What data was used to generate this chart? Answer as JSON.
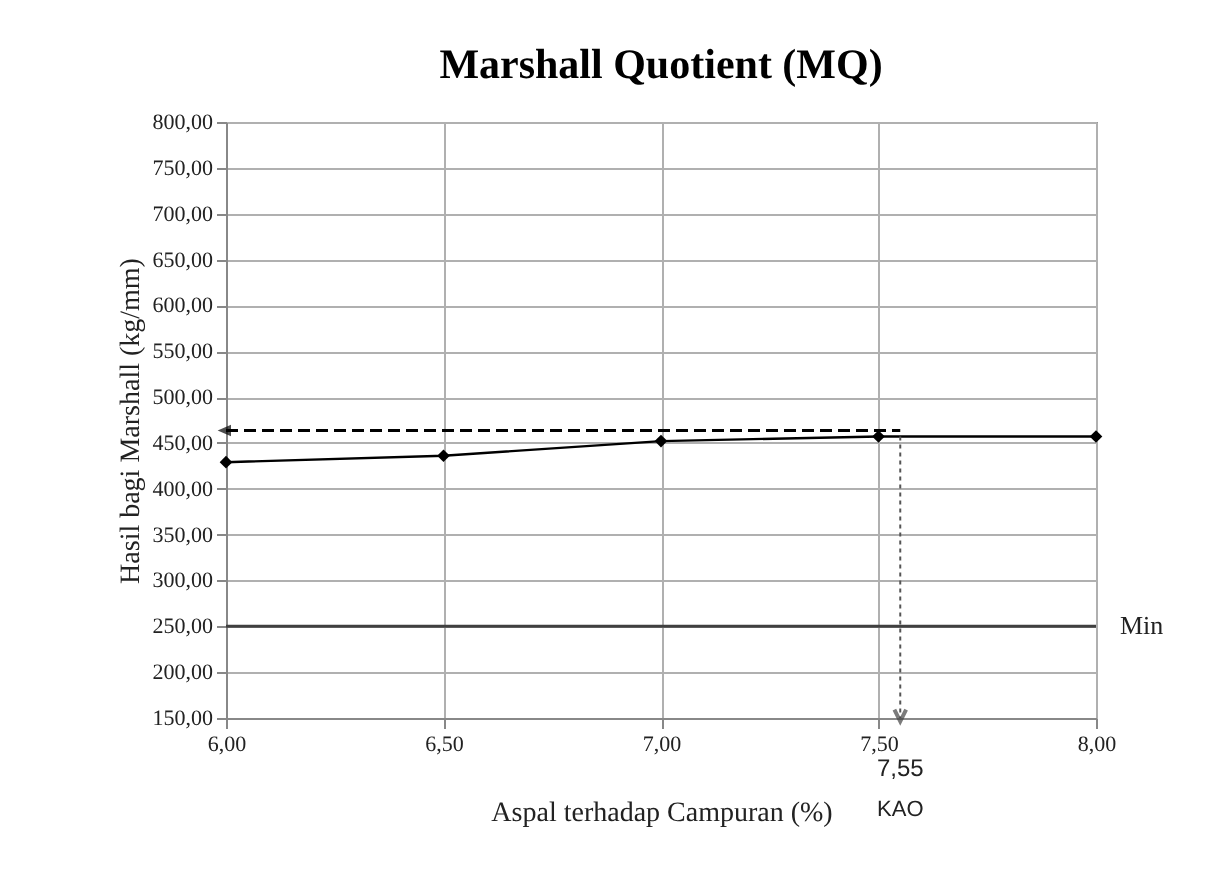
{
  "chart_data": {
    "type": "line",
    "title": "Marshall Quotient (MQ)",
    "xlabel": "Aspal terhadap Campuran (%)",
    "ylabel": "Hasil bagi Marshall (kg/mm)",
    "x": [
      6.0,
      6.5,
      7.0,
      7.5,
      8.0
    ],
    "series": [
      {
        "color": "#000000",
        "values": [
          429,
          436,
          452,
          457,
          457
        ]
      }
    ],
    "xlim": [
      6,
      8
    ],
    "xticks": [
      {
        "value": 6,
        "label": "6,00"
      },
      {
        "value": 6.5,
        "label": "6,50"
      },
      {
        "value": 7,
        "label": "7,00"
      },
      {
        "value": 7.5,
        "label": "7,50"
      },
      {
        "value": 8,
        "label": "8,00"
      }
    ],
    "ylim": [
      150,
      800
    ],
    "yticks": [
      {
        "value": 150,
        "label": "150,00"
      },
      {
        "value": 200,
        "label": "200,00"
      },
      {
        "value": 250,
        "label": "250,00"
      },
      {
        "value": 300,
        "label": "300,00"
      },
      {
        "value": 350,
        "label": "350,00"
      },
      {
        "value": 400,
        "label": "400,00"
      },
      {
        "value": 450,
        "label": "450,00"
      },
      {
        "value": 500,
        "label": "500,00"
      },
      {
        "value": 550,
        "label": "550,00"
      },
      {
        "value": 600,
        "label": "600,00"
      },
      {
        "value": 650,
        "label": "650,00"
      },
      {
        "value": 700,
        "label": "700,00"
      },
      {
        "value": 750,
        "label": "750,00"
      },
      {
        "value": 800,
        "label": "800,00"
      }
    ],
    "ref_lines": [
      {
        "axis": "y",
        "value": 250,
        "label": "Min",
        "color": "#404040"
      }
    ],
    "annotations": [
      {
        "text": "7,55",
        "x": 7.55,
        "y": 150
      },
      "KAO"
    ],
    "grid": true,
    "marker": "diamond",
    "line_style": "solid"
  }
}
